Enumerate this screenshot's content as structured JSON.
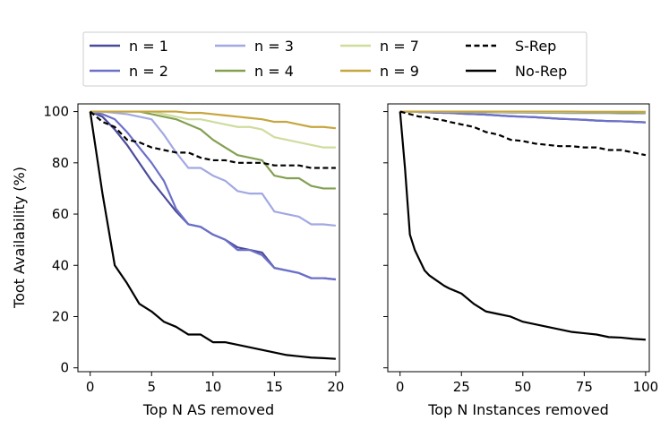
{
  "chart_data": [
    {
      "type": "line",
      "xlabel": "Top N AS removed",
      "ylabel": "Toot Availability (%)",
      "xlim": [
        -1,
        20.3
      ],
      "ylim": [
        -1.5,
        103
      ],
      "xticks": [
        0,
        5,
        10,
        15,
        20
      ],
      "yticks": [
        0,
        20,
        40,
        60,
        80,
        100
      ],
      "x": [
        0,
        1,
        2,
        3,
        4,
        5,
        6,
        7,
        8,
        9,
        10,
        11,
        12,
        13,
        14,
        15,
        16,
        17,
        18,
        19,
        20
      ],
      "series": [
        {
          "key": "n1",
          "values": [
            100,
            98,
            93,
            87,
            80,
            73,
            67,
            61,
            56,
            55,
            52,
            50,
            47,
            46,
            45,
            39,
            38,
            37,
            35,
            35,
            34.5
          ]
        },
        {
          "key": "n2",
          "values": [
            100,
            99,
            97,
            92,
            86,
            80,
            73,
            62,
            56,
            55,
            52,
            50,
            46,
            46,
            44,
            39,
            38,
            37,
            35,
            35,
            34.5
          ]
        },
        {
          "key": "n3",
          "values": [
            100,
            100,
            99.5,
            99,
            98,
            97,
            91,
            84,
            78,
            78,
            75,
            73,
            69,
            68,
            68,
            61,
            60,
            59,
            56,
            56,
            55.5
          ]
        },
        {
          "key": "n4",
          "values": [
            100,
            100,
            100,
            100,
            100,
            99,
            98,
            97,
            95,
            93,
            89,
            86,
            83,
            82,
            81,
            75,
            74,
            74,
            71,
            70,
            70
          ]
        },
        {
          "key": "n7",
          "values": [
            100,
            100,
            100,
            100,
            100,
            100,
            99,
            98,
            97,
            97,
            96,
            95,
            94,
            94,
            93,
            90,
            89,
            88,
            87,
            86,
            86
          ]
        },
        {
          "key": "n9",
          "values": [
            100,
            100,
            100,
            100,
            100,
            100,
            100,
            100,
            99.5,
            99.5,
            99,
            98.5,
            98,
            97.5,
            97,
            96,
            96,
            95,
            94,
            94,
            93.5
          ]
        },
        {
          "key": "srep",
          "values": [
            100,
            96,
            94,
            89,
            88,
            86,
            85,
            84,
            84,
            82,
            81,
            81,
            80,
            80,
            80,
            79,
            79,
            79,
            78,
            78,
            78
          ]
        },
        {
          "key": "norep",
          "values": [
            100,
            68,
            40,
            33,
            25,
            22,
            18,
            16,
            13,
            13,
            10,
            10,
            9,
            8,
            7,
            6,
            5,
            4.5,
            4,
            3.8,
            3.5
          ]
        }
      ]
    },
    {
      "type": "line",
      "xlabel": "Top N Instances removed",
      "xlim": [
        -5,
        101.5
      ],
      "ylim": [
        -1.5,
        103
      ],
      "xticks": [
        0,
        25,
        50,
        75,
        100
      ],
      "yticks": [
        0,
        20,
        40,
        60,
        80,
        100
      ],
      "x": [
        0,
        2,
        4,
        6,
        8,
        10,
        12,
        15,
        18,
        20,
        25,
        30,
        35,
        40,
        45,
        50,
        55,
        60,
        65,
        70,
        75,
        80,
        85,
        90,
        95,
        100
      ],
      "series": [
        {
          "key": "n1",
          "values": [
            100,
            100,
            100,
            100,
            99.8,
            99.8,
            99.7,
            99.6,
            99.5,
            99.5,
            99.2,
            99,
            98.8,
            98.5,
            98.2,
            98,
            97.8,
            97.5,
            97.2,
            97,
            96.8,
            96.5,
            96.3,
            96.2,
            96,
            95.8
          ]
        },
        {
          "key": "n2",
          "values": [
            100,
            100,
            100,
            100,
            99.8,
            99.8,
            99.7,
            99.6,
            99.5,
            99.5,
            99.2,
            99,
            98.8,
            98.5,
            98.2,
            98,
            97.8,
            97.5,
            97.2,
            97,
            96.8,
            96.5,
            96.3,
            96.2,
            96,
            95.8
          ]
        },
        {
          "key": "n3",
          "values": [
            100,
            100,
            100,
            100,
            100,
            100,
            100,
            100,
            99.9,
            99.9,
            99.8,
            99.8,
            99.7,
            99.7,
            99.6,
            99.6,
            99.5,
            99.5,
            99.5,
            99.4,
            99.4,
            99.4,
            99.4,
            99.3,
            99.3,
            99.3
          ]
        },
        {
          "key": "n4",
          "values": [
            100,
            100,
            100,
            100,
            100,
            100,
            100,
            100,
            100,
            100,
            99.9,
            99.9,
            99.9,
            99.8,
            99.8,
            99.8,
            99.8,
            99.7,
            99.7,
            99.7,
            99.7,
            99.7,
            99.7,
            99.6,
            99.6,
            99.6
          ]
        },
        {
          "key": "n7",
          "values": [
            100,
            100,
            100,
            100,
            100,
            100,
            100,
            100,
            100,
            100,
            100,
            100,
            100,
            99.9,
            99.9,
            99.9,
            99.9,
            99.9,
            99.9,
            99.9,
            99.9,
            99.9,
            99.9,
            99.9,
            99.9,
            99.8
          ]
        },
        {
          "key": "n9",
          "values": [
            100,
            100,
            100,
            100,
            100,
            100,
            100,
            100,
            100,
            100,
            100,
            100,
            100,
            100,
            100,
            100,
            100,
            100,
            100,
            100,
            99.9,
            99.9,
            99.9,
            99.9,
            99.9,
            99.9
          ]
        },
        {
          "key": "srep",
          "values": [
            100,
            99.5,
            99,
            98.5,
            98,
            98,
            97.5,
            97,
            96.5,
            96,
            95,
            94,
            92,
            91,
            89,
            88.5,
            87.5,
            87,
            86.5,
            86.5,
            86,
            86,
            85,
            85,
            84,
            83
          ]
        },
        {
          "key": "norep",
          "values": [
            100,
            78,
            52,
            46,
            42,
            38,
            36,
            34,
            32,
            31,
            29,
            25,
            22,
            21,
            20,
            18,
            17,
            16,
            15,
            14,
            13.5,
            13,
            12,
            11.8,
            11.3,
            11
          ]
        }
      ]
    }
  ],
  "legend": [
    {
      "key": "n1",
      "label": "n = 1",
      "color": "#4a4a9a",
      "dash": ""
    },
    {
      "key": "n2",
      "label": "n = 2",
      "color": "#6b70c8",
      "dash": ""
    },
    {
      "key": "n3",
      "label": "n = 3",
      "color": "#a2a8e2",
      "dash": ""
    },
    {
      "key": "n4",
      "label": "n = 4",
      "color": "#83a051",
      "dash": ""
    },
    {
      "key": "n7",
      "label": "n = 7",
      "color": "#cfdc9e",
      "dash": ""
    },
    {
      "key": "n9",
      "label": "n = 9",
      "color": "#c6a63e",
      "dash": ""
    },
    {
      "key": "srep",
      "label": "S-Rep",
      "color": "#000000",
      "dash": "6,3.5"
    },
    {
      "key": "norep",
      "label": "No-Rep",
      "color": "#000000",
      "dash": ""
    }
  ]
}
